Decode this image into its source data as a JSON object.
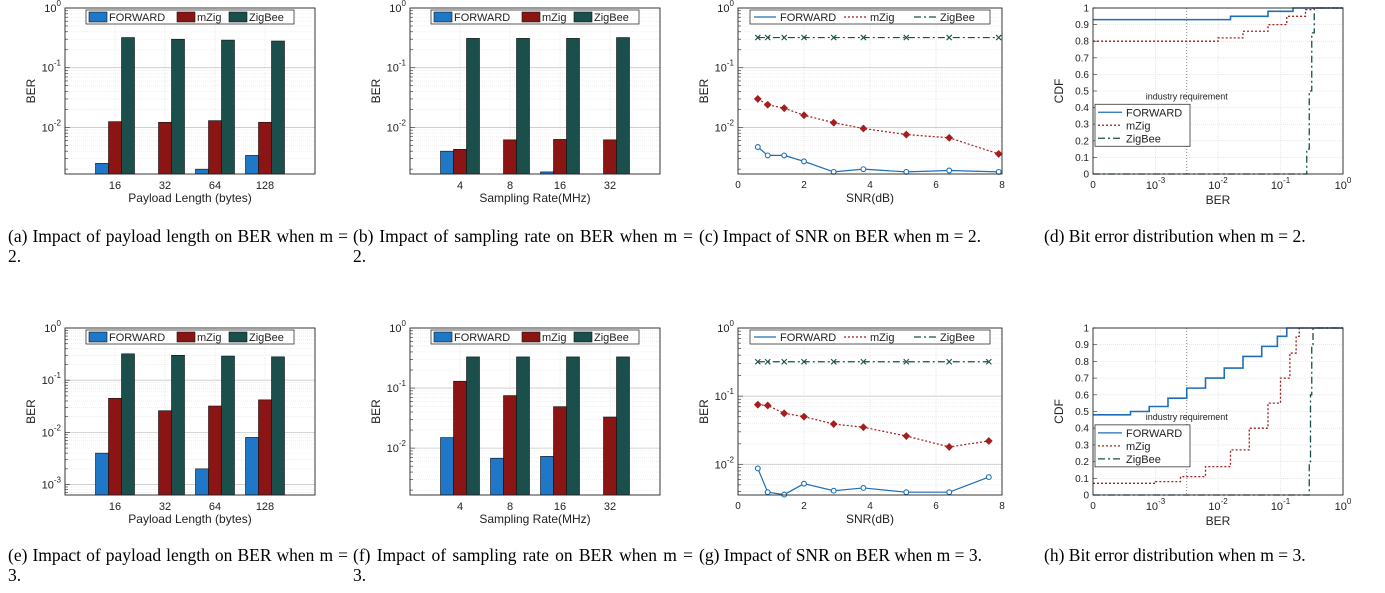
{
  "colors": {
    "forward": "#1f77c8",
    "mzig": "#8b1414",
    "zigbee": "#1b4f4b",
    "legend_line_forward": "#1e6fb5",
    "legend_line_mzig": "#a51e1e",
    "legend_line_zigbee": "#1b4f4b"
  },
  "captions": [
    "(a) Impact of payload length on BER when m = 2.",
    "(b) Impact of sampling rate on BER when m = 2.",
    "(c) Impact of SNR on BER when m = 2.",
    "(d) Bit error distribution when m = 2.",
    "(e) Impact of payload length on BER when m = 3.",
    "(f) Impact of sampling rate on BER when m = 3.",
    "(g) Impact of SNR on BER when m = 3.",
    "(h) Bit error distribution when m = 3."
  ],
  "chart_data": [
    {
      "type": "bar",
      "panel": "a",
      "scale": "log",
      "ylim_exp": [
        -2.78,
        0
      ],
      "xlabel": "Payload Length (bytes)",
      "ylabel": "BER",
      "categories": [
        "16",
        "32",
        "64",
        "128"
      ],
      "series": [
        {
          "name": "FORWARD",
          "values": [
            0.0025,
            null,
            0.002,
            0.0034
          ]
        },
        {
          "name": "mZig",
          "values": [
            0.0125,
            0.0122,
            0.013,
            0.0122
          ]
        },
        {
          "name": "ZigBee",
          "values": [
            0.32,
            0.3,
            0.29,
            0.28
          ]
        }
      ],
      "legend": "top"
    },
    {
      "type": "bar",
      "panel": "b",
      "scale": "log",
      "ylim_exp": [
        -2.78,
        0
      ],
      "xlabel": "Sampling Rate(MHz)",
      "ylabel": "BER",
      "categories": [
        "4",
        "8",
        "16",
        "32"
      ],
      "series": [
        {
          "name": "FORWARD",
          "values": [
            0.004,
            null,
            0.0018,
            null
          ]
        },
        {
          "name": "mZig",
          "values": [
            0.0043,
            0.0062,
            0.0063,
            0.0062
          ]
        },
        {
          "name": "ZigBee",
          "values": [
            0.31,
            0.31,
            0.31,
            0.32
          ]
        }
      ],
      "legend": "top"
    },
    {
      "type": "line",
      "panel": "c",
      "scale": "log",
      "ylim_exp": [
        -2.78,
        0
      ],
      "xlim": [
        0,
        8
      ],
      "xticks": [
        0,
        2,
        4,
        6,
        8
      ],
      "xlabel": "SNR(dB)",
      "ylabel": "BER",
      "series": [
        {
          "name": "FORWARD",
          "x": [
            0.6,
            0.9,
            1.4,
            2.0,
            2.9,
            3.8,
            5.1,
            6.4,
            7.9
          ],
          "y": [
            0.0047,
            0.0034,
            0.0034,
            0.0027,
            0.0018,
            0.002,
            0.0018,
            0.0019,
            0.0018
          ]
        },
        {
          "name": "mZig",
          "x": [
            0.6,
            0.9,
            1.4,
            2.0,
            2.9,
            3.8,
            5.1,
            6.4,
            7.9
          ],
          "y": [
            0.03,
            0.024,
            0.021,
            0.016,
            0.012,
            0.0096,
            0.0076,
            0.0067,
            0.0036
          ]
        },
        {
          "name": "ZigBee",
          "x": [
            0.6,
            0.9,
            1.4,
            2.0,
            2.9,
            3.8,
            5.1,
            6.4,
            7.9
          ],
          "y": [
            0.32,
            0.32,
            0.32,
            0.32,
            0.32,
            0.32,
            0.32,
            0.32,
            0.32
          ]
        }
      ],
      "legend": "top"
    },
    {
      "type": "line",
      "panel": "d",
      "xscale": "log",
      "xlim_exp": [
        -4,
        0
      ],
      "ylim": [
        0,
        1
      ],
      "yticks": [
        0,
        0.1,
        0.2,
        0.3,
        0.4,
        0.5,
        0.6,
        0.7,
        0.8,
        0.9,
        1
      ],
      "xlabel": "BER",
      "ylabel": "CDF",
      "annotation": "industry requirement",
      "threshold_exp": -2.5,
      "series": [
        {
          "name": "FORWARD",
          "cdf": [
            [
              -4,
              0.93
            ],
            [
              -2.5,
              0.93
            ],
            [
              -1.8,
              0.95
            ],
            [
              -1.2,
              0.98
            ],
            [
              -0.8,
              1.0
            ]
          ]
        },
        {
          "name": "mZig",
          "cdf": [
            [
              -4,
              0.8
            ],
            [
              -2.4,
              0.8
            ],
            [
              -2.0,
              0.82
            ],
            [
              -1.6,
              0.86
            ],
            [
              -1.2,
              0.9
            ],
            [
              -0.9,
              0.95
            ],
            [
              -0.6,
              0.99
            ],
            [
              -0.5,
              1.0
            ]
          ]
        },
        {
          "name": "ZigBee",
          "cdf": [
            [
              -4,
              0
            ],
            [
              -0.63,
              0
            ],
            [
              -0.58,
              0.15
            ],
            [
              -0.54,
              0.5
            ],
            [
              -0.5,
              0.85
            ],
            [
              -0.46,
              1.0
            ]
          ]
        }
      ],
      "legend": "left"
    },
    {
      "type": "bar",
      "panel": "e",
      "scale": "log",
      "ylim_exp": [
        -3.2,
        0
      ],
      "xlabel": "Payload Length (bytes)",
      "ylabel": "BER",
      "categories": [
        "16",
        "32",
        "64",
        "128"
      ],
      "series": [
        {
          "name": "FORWARD",
          "values": [
            0.004,
            null,
            0.002,
            0.008
          ]
        },
        {
          "name": "mZig",
          "values": [
            0.045,
            0.026,
            0.032,
            0.042
          ]
        },
        {
          "name": "ZigBee",
          "values": [
            0.32,
            0.3,
            0.29,
            0.28
          ]
        }
      ],
      "legend": "top"
    },
    {
      "type": "bar",
      "panel": "f",
      "scale": "log",
      "ylim_exp": [
        -2.78,
        0
      ],
      "xlabel": "Sampling Rate(MHz)",
      "ylabel": "BER",
      "categories": [
        "4",
        "8",
        "16",
        "32"
      ],
      "series": [
        {
          "name": "FORWARD",
          "values": [
            0.015,
            0.0068,
            0.0073,
            null
          ]
        },
        {
          "name": "mZig",
          "values": [
            0.13,
            0.075,
            0.049,
            0.033
          ]
        },
        {
          "name": "ZigBee",
          "values": [
            0.33,
            0.33,
            0.33,
            0.33
          ]
        }
      ],
      "legend": "top"
    },
    {
      "type": "line",
      "panel": "g",
      "scale": "log",
      "ylim_exp": [
        -2.45,
        0
      ],
      "xlim": [
        0,
        8
      ],
      "xticks": [
        0,
        2,
        4,
        6,
        8
      ],
      "xlabel": "SNR(dB)",
      "ylabel": "BER",
      "series": [
        {
          "name": "FORWARD",
          "x": [
            0.6,
            0.9,
            1.4,
            2.0,
            2.9,
            3.8,
            5.1,
            6.4,
            7.6
          ],
          "y": [
            0.0087,
            0.0039,
            0.0036,
            0.0052,
            0.0041,
            0.0045,
            0.0039,
            0.0039,
            0.0065
          ]
        },
        {
          "name": "mZig",
          "x": [
            0.6,
            0.9,
            1.4,
            2.0,
            2.9,
            3.8,
            5.1,
            6.4,
            7.6
          ],
          "y": [
            0.075,
            0.073,
            0.056,
            0.05,
            0.039,
            0.035,
            0.026,
            0.018,
            0.022
          ]
        },
        {
          "name": "ZigBee",
          "x": [
            0.6,
            0.9,
            1.4,
            2.0,
            2.9,
            3.8,
            5.1,
            6.4,
            7.6
          ],
          "y": [
            0.32,
            0.32,
            0.32,
            0.32,
            0.32,
            0.32,
            0.32,
            0.32,
            0.32
          ]
        }
      ],
      "legend": "top"
    },
    {
      "type": "line",
      "panel": "h",
      "xscale": "log",
      "xlim_exp": [
        -4,
        0
      ],
      "ylim": [
        0,
        1
      ],
      "yticks": [
        0,
        0.1,
        0.2,
        0.3,
        0.4,
        0.5,
        0.6,
        0.7,
        0.8,
        0.9,
        1
      ],
      "xlabel": "BER",
      "ylabel": "CDF",
      "annotation": "industry requirement",
      "threshold_exp": -2.5,
      "series": [
        {
          "name": "FORWARD",
          "cdf": [
            [
              -4,
              0.48
            ],
            [
              -3.6,
              0.48
            ],
            [
              -3.4,
              0.5
            ],
            [
              -3.1,
              0.53
            ],
            [
              -2.8,
              0.58
            ],
            [
              -2.5,
              0.64
            ],
            [
              -2.2,
              0.7
            ],
            [
              -1.9,
              0.76
            ],
            [
              -1.6,
              0.83
            ],
            [
              -1.3,
              0.89
            ],
            [
              -1.05,
              0.95
            ],
            [
              -0.9,
              1.0
            ]
          ]
        },
        {
          "name": "mZig",
          "cdf": [
            [
              -4,
              0.07
            ],
            [
              -3.0,
              0.08
            ],
            [
              -2.6,
              0.11
            ],
            [
              -2.2,
              0.17
            ],
            [
              -1.8,
              0.27
            ],
            [
              -1.5,
              0.4
            ],
            [
              -1.2,
              0.55
            ],
            [
              -1.0,
              0.7
            ],
            [
              -0.85,
              0.85
            ],
            [
              -0.75,
              0.95
            ],
            [
              -0.7,
              1.0
            ]
          ]
        },
        {
          "name": "ZigBee",
          "cdf": [
            [
              -4,
              0
            ],
            [
              -0.56,
              0
            ],
            [
              -0.54,
              0.2
            ],
            [
              -0.52,
              0.6
            ],
            [
              -0.5,
              0.9
            ],
            [
              -0.48,
              1.0
            ]
          ]
        }
      ],
      "legend": "left"
    }
  ]
}
